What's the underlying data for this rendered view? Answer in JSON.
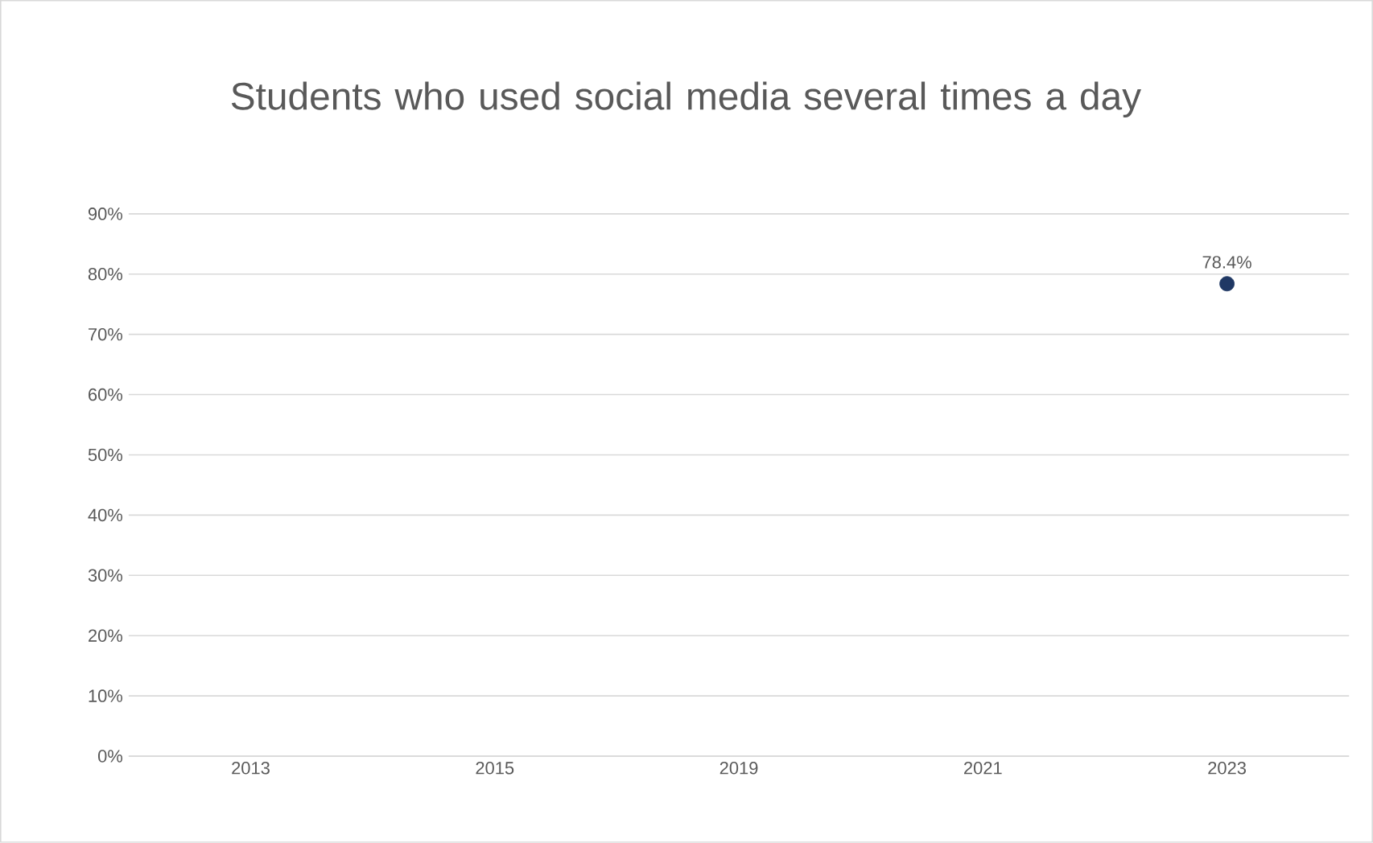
{
  "chart_data": {
    "type": "scatter",
    "title": "Students who used social media several times a day",
    "categories": [
      "2013",
      "2015",
      "2019",
      "2021",
      "2023"
    ],
    "values": [
      null,
      null,
      null,
      null,
      78.4
    ],
    "value_labels": [
      null,
      null,
      null,
      null,
      "78.4%"
    ],
    "color": "#203864",
    "grid": "y",
    "ylim": [
      0,
      90
    ],
    "yticks": [
      {
        "value": 0,
        "label": "0%"
      },
      {
        "value": 10,
        "label": "10%"
      },
      {
        "value": 20,
        "label": "20%"
      },
      {
        "value": 30,
        "label": "30%"
      },
      {
        "value": 40,
        "label": "40%"
      },
      {
        "value": 50,
        "label": "50%"
      },
      {
        "value": 60,
        "label": "60%"
      },
      {
        "value": 70,
        "label": "70%"
      },
      {
        "value": 80,
        "label": "80%"
      },
      {
        "value": 90,
        "label": "90%"
      }
    ]
  }
}
